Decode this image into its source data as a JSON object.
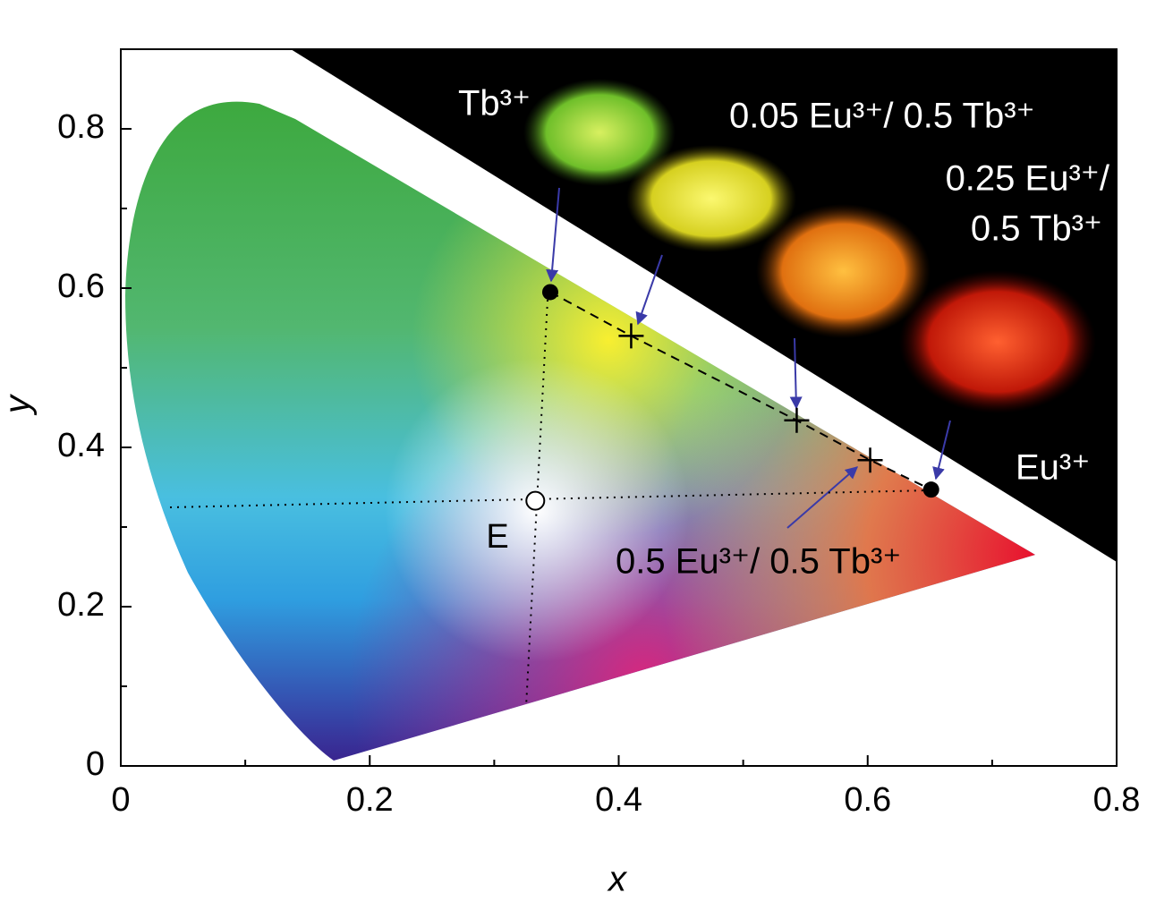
{
  "chart_data": {
    "type": "scatter",
    "xlabel": "x",
    "ylabel": "y",
    "xlim": [
      0,
      0.8
    ],
    "ylim": [
      0,
      0.9
    ],
    "xticks": [
      0,
      0.2,
      0.4,
      0.6,
      0.8
    ],
    "yticks": [
      0,
      0.2,
      0.4,
      0.6,
      0.8
    ],
    "xminorticks": [
      0.1,
      0.3,
      0.5,
      0.7
    ],
    "yminorticks": [
      0.1,
      0.3,
      0.5,
      0.7
    ],
    "series": [
      {
        "x": [
          0.345,
          0.41,
          0.543,
          0.602,
          0.651
        ],
        "y": [
          0.595,
          0.54,
          0.434,
          0.384,
          0.347
        ],
        "markers": [
          "filled",
          "cross",
          "cross",
          "cross",
          "filled"
        ],
        "labels": [
          [
            "Tb³⁺"
          ],
          [
            "0.05 Eu³⁺/ 0.5 Tb³⁺"
          ],
          [
            "0.25 Eu³⁺/",
            "0.5 Tb³⁺"
          ],
          [
            "0.5 Eu³⁺/ 0.5 Tb³⁺"
          ],
          [
            "Eu³⁺"
          ]
        ]
      }
    ],
    "reference_point": {
      "label": "E",
      "x": 0.333,
      "y": 0.333
    }
  }
}
